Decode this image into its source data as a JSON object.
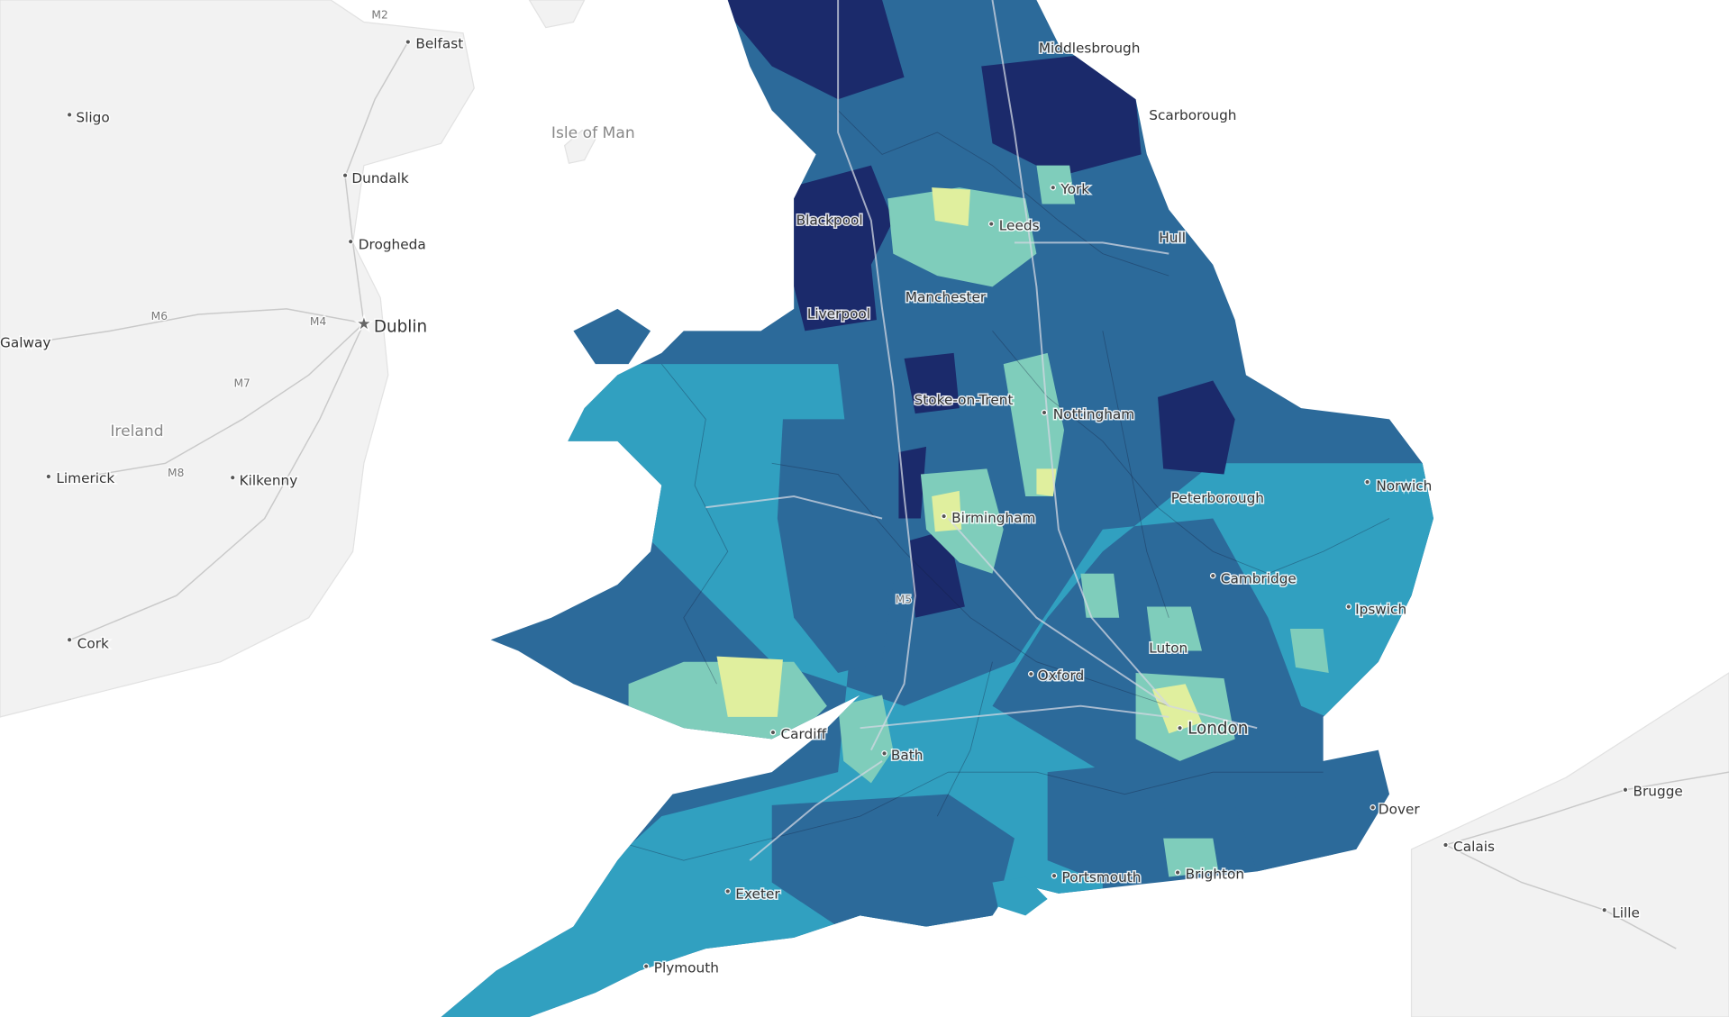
{
  "map": {
    "labels": [
      {
        "name": "M2"
      },
      {
        "name": "Belfast"
      },
      {
        "name": "Sligo"
      },
      {
        "name": "Isle of Man"
      },
      {
        "name": "Dundalk"
      },
      {
        "name": "Drogheda"
      },
      {
        "name": "Galway"
      },
      {
        "name": "M6"
      },
      {
        "name": "M4"
      },
      {
        "name": "Dublin"
      },
      {
        "name": "M7"
      },
      {
        "name": "Ireland"
      },
      {
        "name": "Limerick"
      },
      {
        "name": "M8"
      },
      {
        "name": "Kilkenny"
      },
      {
        "name": "Cork"
      },
      {
        "name": "Middlesbrough"
      },
      {
        "name": "Scarborough"
      },
      {
        "name": "York"
      },
      {
        "name": "Blackpool"
      },
      {
        "name": "Leeds"
      },
      {
        "name": "Hull"
      },
      {
        "name": "Manchester"
      },
      {
        "name": "Liverpool"
      },
      {
        "name": "Stoke-on-Trent"
      },
      {
        "name": "Nottingham"
      },
      {
        "name": "Norwich"
      },
      {
        "name": "Peterborough"
      },
      {
        "name": "Birmingham"
      },
      {
        "name": "Cambridge"
      },
      {
        "name": "Ipswich"
      },
      {
        "name": "M5"
      },
      {
        "name": "Luton"
      },
      {
        "name": "Oxford"
      },
      {
        "name": "Cardiff"
      },
      {
        "name": "London"
      },
      {
        "name": "Bath"
      },
      {
        "name": "Brugge"
      },
      {
        "name": "Dover"
      },
      {
        "name": "Calais"
      },
      {
        "name": "Lille"
      },
      {
        "name": "Exeter"
      },
      {
        "name": "Portsmouth"
      },
      {
        "name": "Brighton"
      },
      {
        "name": "Plymouth"
      }
    ]
  }
}
